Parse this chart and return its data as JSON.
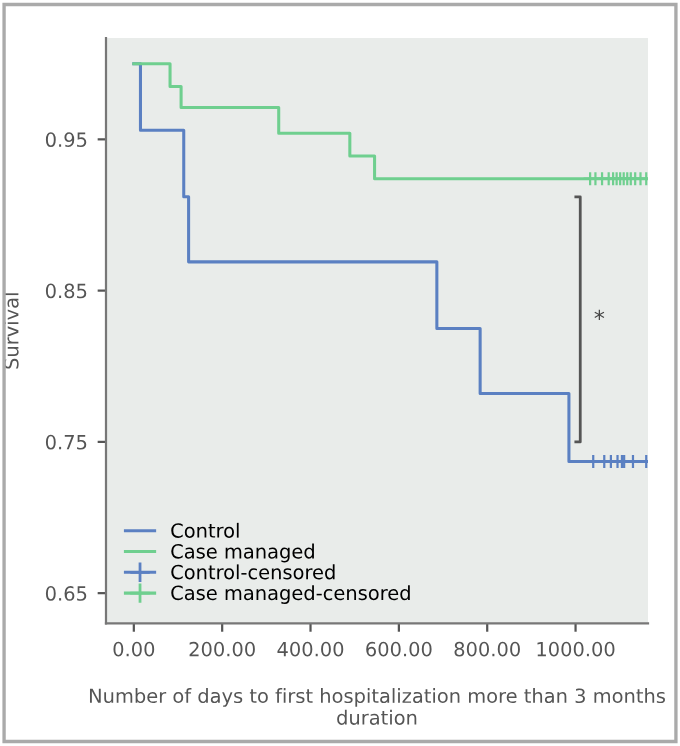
{
  "chart_data": {
    "type": "step",
    "xlabel": "Number of days to first hospitalization more than 3 months duration",
    "ylabel": "Survival",
    "xlim": [
      -63,
      1164
    ],
    "ylim": [
      0.63,
      1.017
    ],
    "xticks": [
      {
        "value": 0,
        "label": "0.00"
      },
      {
        "value": 200,
        "label": "200.00"
      },
      {
        "value": 400,
        "label": "400.00"
      },
      {
        "value": 600,
        "label": "600.00"
      },
      {
        "value": 800,
        "label": "800.00"
      },
      {
        "value": 1000,
        "label": "1000.00"
      }
    ],
    "yticks": [
      0.65,
      0.75,
      0.85,
      0.95
    ],
    "grid": false,
    "legend": "bottom left",
    "annotations": [
      "*"
    ],
    "series": [
      {
        "name": "Control",
        "color": "#5b80c2",
        "x": [
          0,
          15,
          113,
          124,
          686,
          784,
          985,
          1164
        ],
        "values": [
          1.0,
          0.956,
          0.912,
          0.869,
          0.825,
          0.782,
          0.737,
          0.737
        ]
      },
      {
        "name": "Case managed",
        "color": "#6fcf8f",
        "x": [
          0,
          82,
          107,
          328,
          489,
          545,
          1164
        ],
        "values": [
          1.0,
          0.985,
          0.971,
          0.954,
          0.939,
          0.924,
          0.924
        ]
      },
      {
        "name": "Control-censored",
        "type": "scatter",
        "marker": "cross",
        "color": "#5b80c2",
        "x": [
          1040,
          1065,
          1080,
          1095,
          1105,
          1110,
          1130,
          1160
        ],
        "values": [
          0.737,
          0.737,
          0.737,
          0.737,
          0.737,
          0.737,
          0.737,
          0.737
        ]
      },
      {
        "name": "Case managed-censored",
        "type": "scatter",
        "marker": "cross",
        "color": "#6fcf8f",
        "x": [
          1033,
          1045,
          1060,
          1075,
          1085,
          1093,
          1101,
          1109,
          1117,
          1125,
          1135,
          1147,
          1160
        ],
        "values": [
          0.924,
          0.924,
          0.924,
          0.924,
          0.924,
          0.924,
          0.924,
          0.924,
          0.924,
          0.924,
          0.924,
          0.924,
          0.924
        ]
      }
    ]
  }
}
